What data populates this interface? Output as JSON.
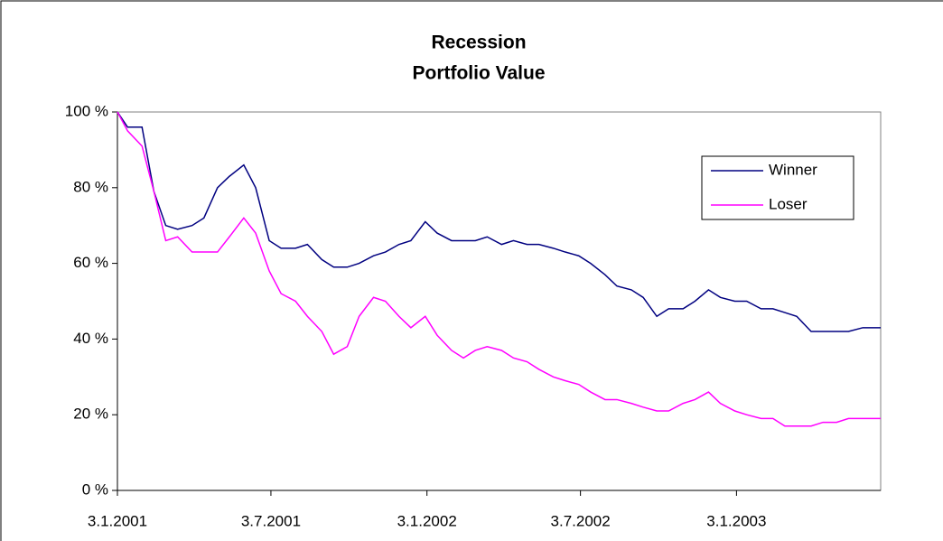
{
  "chart_data": {
    "type": "line",
    "title": "Recession",
    "subtitle": "Portfolio Value",
    "x": [
      "2001-01-03",
      "2001-01-15",
      "2001-02-01",
      "2001-02-15",
      "2001-03-01",
      "2001-03-15",
      "2001-04-01",
      "2001-04-15",
      "2001-05-01",
      "2001-05-15",
      "2001-06-01",
      "2001-06-15",
      "2001-07-01",
      "2001-07-15",
      "2001-08-01",
      "2001-08-15",
      "2001-09-01",
      "2001-09-15",
      "2001-10-01",
      "2001-10-15",
      "2001-11-01",
      "2001-11-15",
      "2001-12-01",
      "2001-12-15",
      "2002-01-01",
      "2002-01-15",
      "2002-02-01",
      "2002-02-15",
      "2002-03-01",
      "2002-03-15",
      "2002-04-01",
      "2002-04-15",
      "2002-05-01",
      "2002-05-15",
      "2002-06-01",
      "2002-06-15",
      "2002-07-01",
      "2002-07-15",
      "2002-08-01",
      "2002-08-15",
      "2002-09-01",
      "2002-09-15",
      "2002-10-01",
      "2002-10-15",
      "2002-11-01",
      "2002-11-15",
      "2002-12-01",
      "2002-12-15",
      "2003-01-01",
      "2003-01-15",
      "2003-02-01",
      "2003-02-15",
      "2003-03-01",
      "2003-03-15",
      "2003-04-01",
      "2003-04-15",
      "2003-05-01",
      "2003-05-15",
      "2003-06-01",
      "2003-06-15",
      "2003-06-22"
    ],
    "series": [
      {
        "name": "Winner",
        "color": "#000080",
        "values": [
          100,
          96,
          96,
          79,
          70,
          69,
          70,
          72,
          80,
          83,
          86,
          80,
          66,
          64,
          64,
          65,
          61,
          59,
          59,
          60,
          62,
          63,
          65,
          66,
          71,
          68,
          66,
          66,
          66,
          67,
          65,
          66,
          65,
          65,
          64,
          63,
          62,
          60,
          57,
          54,
          53,
          51,
          46,
          48,
          48,
          50,
          53,
          51,
          50,
          50,
          48,
          48,
          47,
          46,
          42,
          42,
          42,
          42,
          43,
          43,
          43
        ]
      },
      {
        "name": "Loser",
        "color": "#ff00ff",
        "values": [
          100,
          95,
          91,
          79,
          66,
          67,
          63,
          63,
          63,
          67,
          72,
          68,
          58,
          52,
          50,
          46,
          42,
          36,
          38,
          46,
          51,
          50,
          46,
          43,
          46,
          41,
          37,
          35,
          37,
          38,
          37,
          35,
          34,
          32,
          30,
          29,
          28,
          26,
          24,
          24,
          23,
          22,
          21,
          21,
          23,
          24,
          26,
          23,
          21,
          20,
          19,
          19,
          17,
          17,
          17,
          18,
          18,
          19,
          19,
          19,
          19
        ]
      }
    ],
    "xlim": [
      "2001-01-03",
      "2003-06-22"
    ],
    "xticks": [
      {
        "value": "2001-01-03",
        "label": "3.1.2001"
      },
      {
        "value": "2001-07-03",
        "label": "3.7.2001"
      },
      {
        "value": "2002-01-03",
        "label": "3.1.2002"
      },
      {
        "value": "2002-07-03",
        "label": "3.7.2002"
      },
      {
        "value": "2003-01-03",
        "label": "3.1.2003"
      }
    ],
    "ylim": [
      0,
      100
    ],
    "yticks": [
      {
        "value": 0,
        "label": "0 %"
      },
      {
        "value": 20,
        "label": "20 %"
      },
      {
        "value": 40,
        "label": "40 %"
      },
      {
        "value": 60,
        "label": "60 %"
      },
      {
        "value": 80,
        "label": "80 %"
      },
      {
        "value": 100,
        "label": "100 %"
      }
    ],
    "legend": "upper right"
  }
}
